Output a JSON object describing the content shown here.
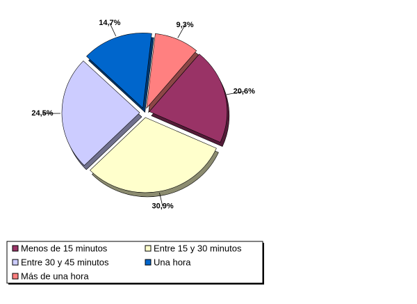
{
  "chart_data": {
    "type": "pie",
    "categories": [
      "Menos de 15 minutos",
      "Entre 15 y 30 minutos",
      "Entre 30 y 45 minutos",
      "Una hora",
      "Más de una hora"
    ],
    "values": [
      20.6,
      30.9,
      24.5,
      14.7,
      9.3
    ],
    "value_labels": [
      "20,6%",
      "30,9%",
      "24,5%",
      "14,7%",
      "9,3%"
    ],
    "colors": [
      "#993366",
      "#ffffcc",
      "#ccccff",
      "#0066cc",
      "#ff8080"
    ],
    "legend": "bottom"
  }
}
